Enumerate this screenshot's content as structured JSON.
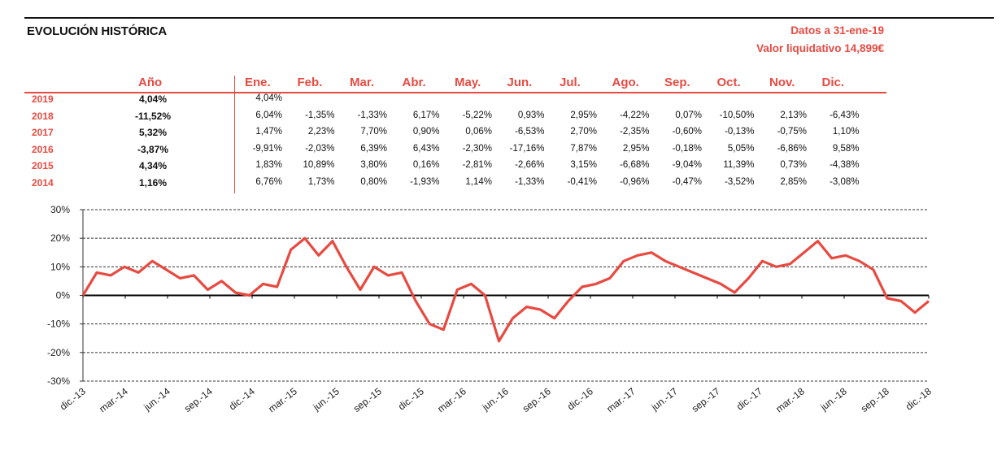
{
  "header": {
    "title": "EVOLUCIÓN HISTÓRICA",
    "date_line": "Datos a 31-ene-19",
    "nav_line": "Valor liquidativo 14,899€"
  },
  "returns_table": {
    "annual_header": "Año",
    "months": [
      "Ene.",
      "Feb.",
      "Mar.",
      "Abr.",
      "May.",
      "Jun.",
      "Jul.",
      "Ago.",
      "Sep.",
      "Oct.",
      "Nov.",
      "Dic."
    ],
    "rows": [
      {
        "year": "2019",
        "annual": "4,04%",
        "monthly": [
          "4,04%",
          "",
          "",
          "",
          "",
          "",
          "",
          "",
          "",
          "",
          "",
          ""
        ]
      },
      {
        "year": "2018",
        "annual": "-11,52%",
        "monthly": [
          "6,04%",
          "-1,35%",
          "-1,33%",
          "6,17%",
          "-5,22%",
          "0,93%",
          "2,95%",
          "-4,22%",
          "0,07%",
          "-10,50%",
          "2,13%",
          "-6,43%"
        ]
      },
      {
        "year": "2017",
        "annual": "5,32%",
        "monthly": [
          "1,47%",
          "2,23%",
          "7,70%",
          "0,90%",
          "0,06%",
          "-6,53%",
          "2,70%",
          "-2,35%",
          "-0,60%",
          "-0,13%",
          "-0,75%",
          "1,10%"
        ]
      },
      {
        "year": "2016",
        "annual": "-3,87%",
        "monthly": [
          "-9,91%",
          "-2,03%",
          "6,39%",
          "6,43%",
          "-2,30%",
          "-17,16%",
          "7,87%",
          "2,95%",
          "-0,18%",
          "5,05%",
          "-6,86%",
          "9,58%"
        ]
      },
      {
        "year": "2015",
        "annual": "4,34%",
        "monthly": [
          "1,83%",
          "10,89%",
          "3,80%",
          "0,16%",
          "-2,81%",
          "-2,66%",
          "3,15%",
          "-6,68%",
          "-9,04%",
          "11,39%",
          "0,73%",
          "-4,38%"
        ]
      },
      {
        "year": "2014",
        "annual": "1,16%",
        "monthly": [
          "6,76%",
          "1,73%",
          "0,80%",
          "-1,93%",
          "1,14%",
          "-1,33%",
          "-0,41%",
          "-0,96%",
          "-0,47%",
          "-3,52%",
          "2,85%",
          "-3,08%"
        ]
      }
    ]
  },
  "colors": {
    "accent": "#e84a41",
    "text": "#111111",
    "line": "#e84a41"
  },
  "chart_data": {
    "type": "line",
    "title": "",
    "xlabel": "",
    "ylabel": "",
    "ylim": [
      -30,
      30
    ],
    "y_ticks": [
      30,
      20,
      10,
      0,
      -10,
      -20,
      -30
    ],
    "y_tick_labels": [
      "30%",
      "20%",
      "10%",
      "0%",
      "-10%",
      "-20%",
      "-30%"
    ],
    "x_tick_labels": [
      "dic.-13",
      "mar.-14",
      "jun.-14",
      "sep.-14",
      "dic.-14",
      "mar.-15",
      "jun.-15",
      "sep.-15",
      "dic.-15",
      "mar.-16",
      "jun.-16",
      "sep.-16",
      "dic.-16",
      "mar.-17",
      "jun.-17",
      "sep.-17",
      "dic.-17",
      "mar.-18",
      "jun.-18",
      "sep.-18",
      "dic.-18"
    ],
    "grid": "horizontal dashed",
    "legend": "none",
    "series": [
      {
        "x": [
          "dic.-13",
          "ene.-14",
          "feb.-14",
          "mar.-14",
          "abr.-14",
          "may.-14",
          "jun.-14",
          "jul.-14",
          "ago.-14",
          "sep.-14",
          "oct.-14",
          "nov.-14",
          "dic.-14",
          "ene.-15",
          "feb.-15",
          "mar.-15",
          "abr.-15",
          "may.-15",
          "jun.-15",
          "jul.-15",
          "ago.-15",
          "sep.-15",
          "oct.-15",
          "nov.-15",
          "dic.-15",
          "ene.-16",
          "feb.-16",
          "mar.-16",
          "abr.-16",
          "may.-16",
          "jun.-16",
          "jul.-16",
          "ago.-16",
          "sep.-16",
          "oct.-16",
          "nov.-16",
          "dic.-16",
          "ene.-17",
          "feb.-17",
          "mar.-17",
          "abr.-17",
          "may.-17",
          "jun.-17",
          "jul.-17",
          "ago.-17",
          "sep.-17",
          "oct.-17",
          "nov.-17",
          "dic.-17",
          "ene.-18",
          "feb.-18",
          "mar.-18",
          "abr.-18",
          "may.-18",
          "jun.-18",
          "jul.-18",
          "ago.-18",
          "sep.-18",
          "oct.-18",
          "nov.-18",
          "dic.-18",
          "ene.-19"
        ],
        "values": [
          0,
          8,
          7,
          10,
          8,
          12,
          9,
          6,
          7,
          2,
          5,
          1,
          0,
          4,
          3,
          16,
          20,
          14,
          19,
          10,
          2,
          10,
          7,
          8,
          -2,
          -10,
          -12,
          2,
          4,
          0,
          -16,
          -8,
          -4,
          -5,
          -8,
          -2,
          3,
          4,
          6,
          12,
          14,
          15,
          12,
          10,
          8,
          6,
          4,
          1,
          6,
          12,
          10,
          11,
          15,
          19,
          13,
          14,
          12,
          9,
          -1,
          -2,
          -6,
          -2
        ]
      }
    ]
  }
}
